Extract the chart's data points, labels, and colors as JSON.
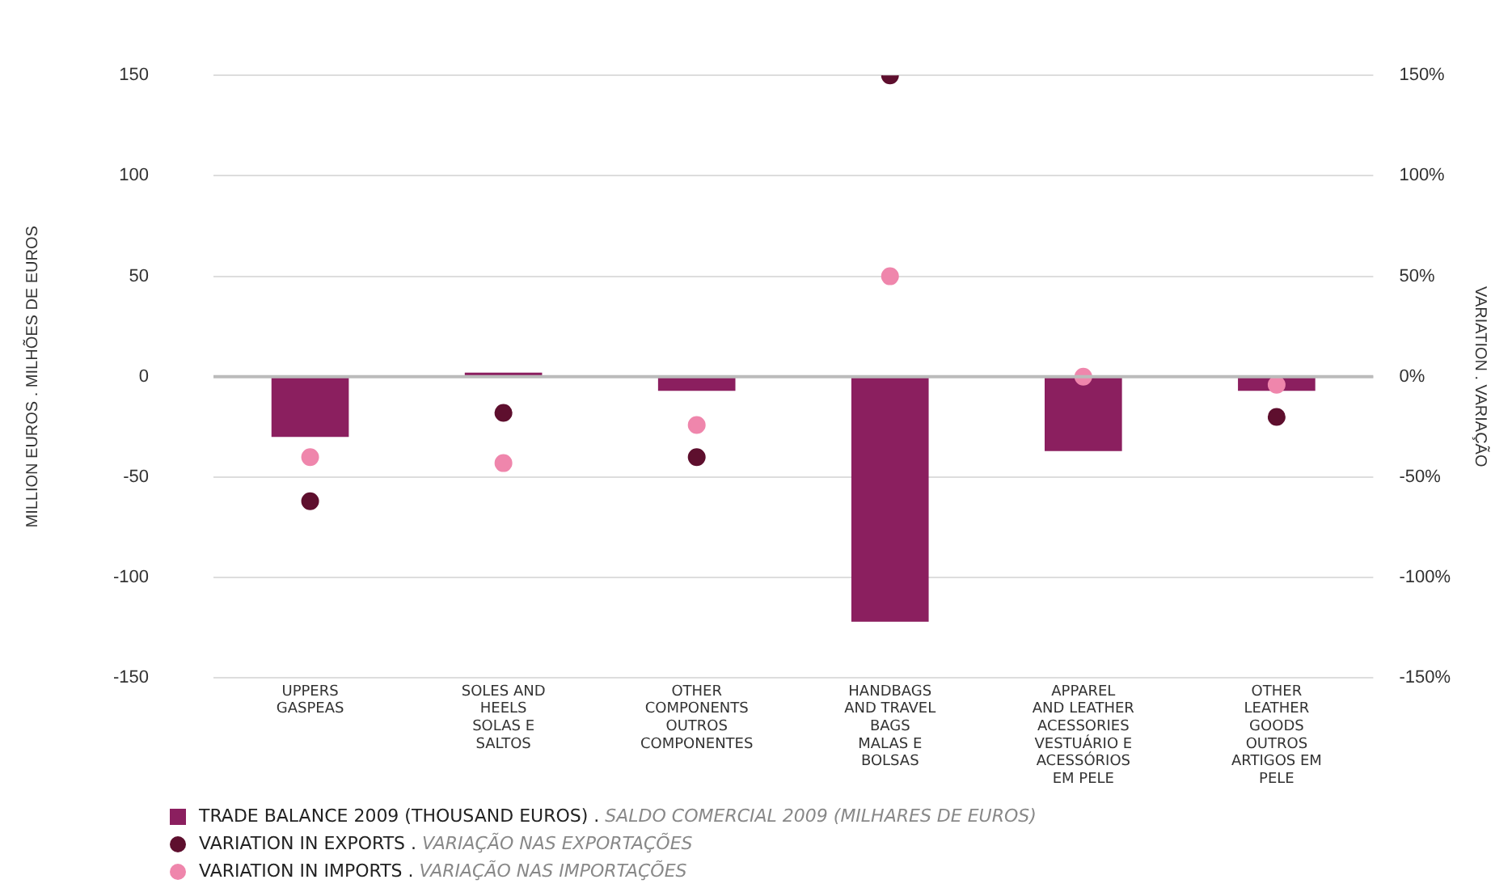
{
  "chart_data": {
    "type": "bar",
    "categories": [
      "UPPERS\nGASPEAS",
      "SOLES AND\nHEELS\nSOLAS E\nSALTOS",
      "OTHER\nCOMPONENTS\nOUTROS\nCOMPONENTES",
      "HANDBAGS\nAND TRAVEL\nBAGS\nMALAS E\nBOLSAS",
      "APPAREL\nAND LEATHER\nACESSORIES\nVESTUÁRIO E\nACESSÓRIOS\nEM PELE",
      "OTHER\nLEATHER\nGOODS\nOUTROS\nARTIGOS EM\nPELE"
    ],
    "series": [
      {
        "name": "TRADE BALANCE 2009 (THOUSAND EUROS) . SALDO COMERCIAL 2009 (MILHARES DE EUROS)",
        "color": "#8b1f5f",
        "values": [
          -30,
          2,
          -7,
          -122,
          -37,
          -7
        ]
      },
      {
        "name": "VARIATION IN EXPORTS . VARIAÇÃO NAS EXPORTAÇÕES",
        "type": "scatter",
        "axis": "y2",
        "color": "#5e0f2e",
        "values": [
          -62,
          -18,
          -40,
          150,
          null,
          -20
        ]
      },
      {
        "name": "VARIATION IN IMPORTS . VARIAÇÃO NAS IMPORTAÇÕES",
        "type": "scatter",
        "axis": "y2",
        "color": "#ef86ac",
        "values": [
          -40,
          -43,
          -24,
          50,
          0,
          -4
        ]
      }
    ],
    "ylabel": "MILLION EUROS . MILHÕES DE EUROS",
    "y2label": "VARIATION . VARIAÇÃO",
    "ylim": [
      -150,
      150
    ],
    "yticks": [
      -150,
      -100,
      -50,
      0,
      50,
      100,
      150
    ],
    "y2lim": [
      -150,
      150
    ],
    "y2ticks": [
      {
        "value": -150,
        "label": "-150%"
      },
      {
        "value": -100,
        "label": "-100%"
      },
      {
        "value": -50,
        "label": "-50%"
      },
      {
        "value": 0,
        "label": "0%"
      },
      {
        "value": 50,
        "label": "50%"
      },
      {
        "value": 100,
        "label": "100%"
      },
      {
        "value": 150,
        "label": "150%"
      }
    ],
    "grid": "y",
    "legend": "bottom left",
    "marker": "circle"
  }
}
